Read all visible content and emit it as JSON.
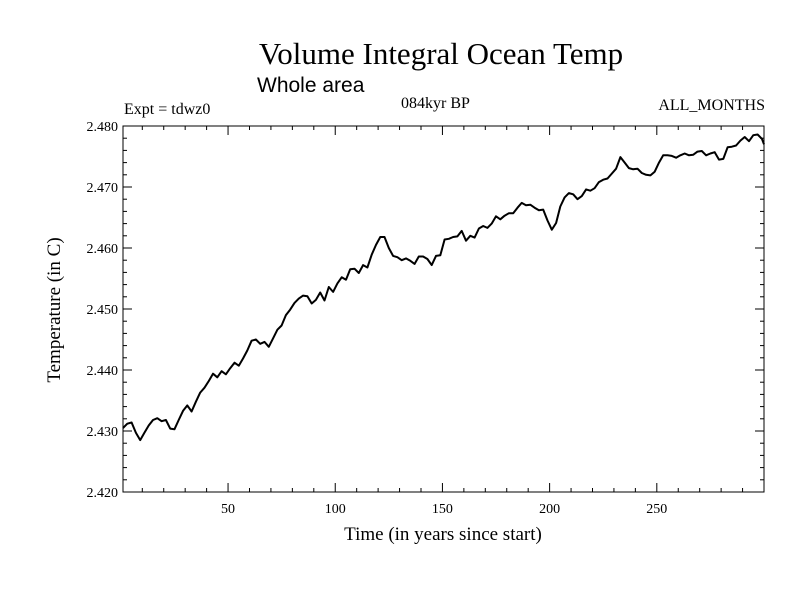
{
  "chart_data": {
    "type": "line",
    "title": "Volume Integral Ocean Temp",
    "subtitle": "Whole area",
    "left_annotation": "Expt = tdwz0",
    "center_annotation": "084kyr BP",
    "right_annotation": "ALL_MONTHS",
    "xlabel": "Time (in years since start)",
    "ylabel": "Temperature (in C)",
    "xlim": [
      1,
      300
    ],
    "ylim": [
      2.42,
      2.48
    ],
    "xticks": [
      50,
      100,
      150,
      200,
      250
    ],
    "xtick_labels": [
      "50",
      "100",
      "150",
      "200",
      "250"
    ],
    "yticks": [
      2.42,
      2.43,
      2.44,
      2.45,
      2.46,
      2.47,
      2.48
    ],
    "ytick_labels": [
      "2.420",
      "2.430",
      "2.440",
      "2.450",
      "2.460",
      "2.470",
      "2.480"
    ],
    "grid": false,
    "series": [
      {
        "x": [
          1,
          3,
          5,
          7,
          9,
          11,
          13,
          15,
          17,
          19,
          21,
          23,
          25,
          27,
          29,
          31,
          33,
          35,
          37,
          39,
          41,
          43,
          45,
          47,
          49,
          51,
          53,
          55,
          57,
          59,
          61,
          63,
          65,
          67,
          69,
          71,
          73,
          75,
          77,
          79,
          81,
          83,
          85,
          87,
          89,
          91,
          93,
          95,
          97,
          99,
          101,
          103,
          105,
          107,
          109,
          111,
          113,
          115,
          117,
          119,
          121,
          123,
          125,
          127,
          129,
          131,
          133,
          135,
          137,
          139,
          141,
          143,
          145,
          147,
          149,
          151,
          153,
          155,
          157,
          159,
          161,
          163,
          165,
          167,
          169,
          171,
          173,
          175,
          177,
          179,
          181,
          183,
          185,
          187,
          189,
          191,
          193,
          195,
          197,
          199,
          201,
          203,
          205,
          207,
          209,
          211,
          213,
          215,
          217,
          219,
          221,
          223,
          225,
          227,
          229,
          231,
          233,
          235,
          237,
          239,
          241,
          243,
          245,
          247,
          249,
          251,
          253,
          255,
          257,
          259,
          261,
          263,
          265,
          267,
          269,
          271,
          273,
          275,
          277,
          279,
          281,
          283,
          285,
          287,
          289,
          291,
          293,
          295,
          297,
          299,
          300
        ],
        "y": [
          2.4305,
          2.4312,
          2.4314,
          2.4297,
          2.4285,
          2.4297,
          2.4309,
          2.4318,
          2.4321,
          2.4316,
          2.4318,
          2.4304,
          2.4303,
          2.4318,
          2.4333,
          2.4342,
          2.4332,
          2.4348,
          2.4363,
          2.4371,
          2.4382,
          2.4394,
          2.4388,
          2.4398,
          2.4393,
          2.4403,
          2.4412,
          2.4407,
          2.4419,
          2.4432,
          2.4448,
          2.445,
          2.4443,
          2.4446,
          2.4438,
          2.4452,
          2.4466,
          2.4473,
          2.449,
          2.4499,
          2.451,
          2.4517,
          2.4522,
          2.4521,
          2.4509,
          2.4515,
          2.4527,
          2.4514,
          2.4536,
          2.4528,
          2.4542,
          2.4552,
          2.4548,
          2.4565,
          2.4566,
          2.4559,
          2.4572,
          2.4568,
          2.4589,
          2.4605,
          2.4618,
          2.4618,
          2.46,
          2.4587,
          2.4585,
          2.458,
          2.4583,
          2.4579,
          2.4574,
          2.4586,
          2.4586,
          2.4582,
          2.4572,
          2.4587,
          2.4588,
          2.4614,
          2.4615,
          2.4618,
          2.4619,
          2.4628,
          2.4612,
          2.462,
          2.4617,
          2.4632,
          2.4636,
          2.4633,
          2.464,
          2.4652,
          2.4647,
          2.4653,
          2.4657,
          2.4657,
          2.4666,
          2.4674,
          2.467,
          2.4671,
          2.4666,
          2.4662,
          2.4663,
          2.4645,
          2.463,
          2.4641,
          2.4668,
          2.4683,
          2.469,
          2.4688,
          2.468,
          2.4685,
          2.4696,
          2.4694,
          2.4698,
          2.4708,
          2.4712,
          2.4714,
          2.4722,
          2.473,
          2.4749,
          2.474,
          2.4731,
          2.4729,
          2.473,
          2.4723,
          2.472,
          2.4719,
          2.4725,
          2.474,
          2.4752,
          2.4752,
          2.4751,
          2.4748,
          2.4752,
          2.4755,
          2.4752,
          2.4753,
          2.4758,
          2.4759,
          2.4752,
          2.4755,
          2.4757,
          2.4745,
          2.4746,
          2.4765,
          2.4766,
          2.4768,
          2.4776,
          2.4782,
          2.4775,
          2.4785,
          2.4786,
          2.4779,
          2.477
        ]
      }
    ]
  }
}
